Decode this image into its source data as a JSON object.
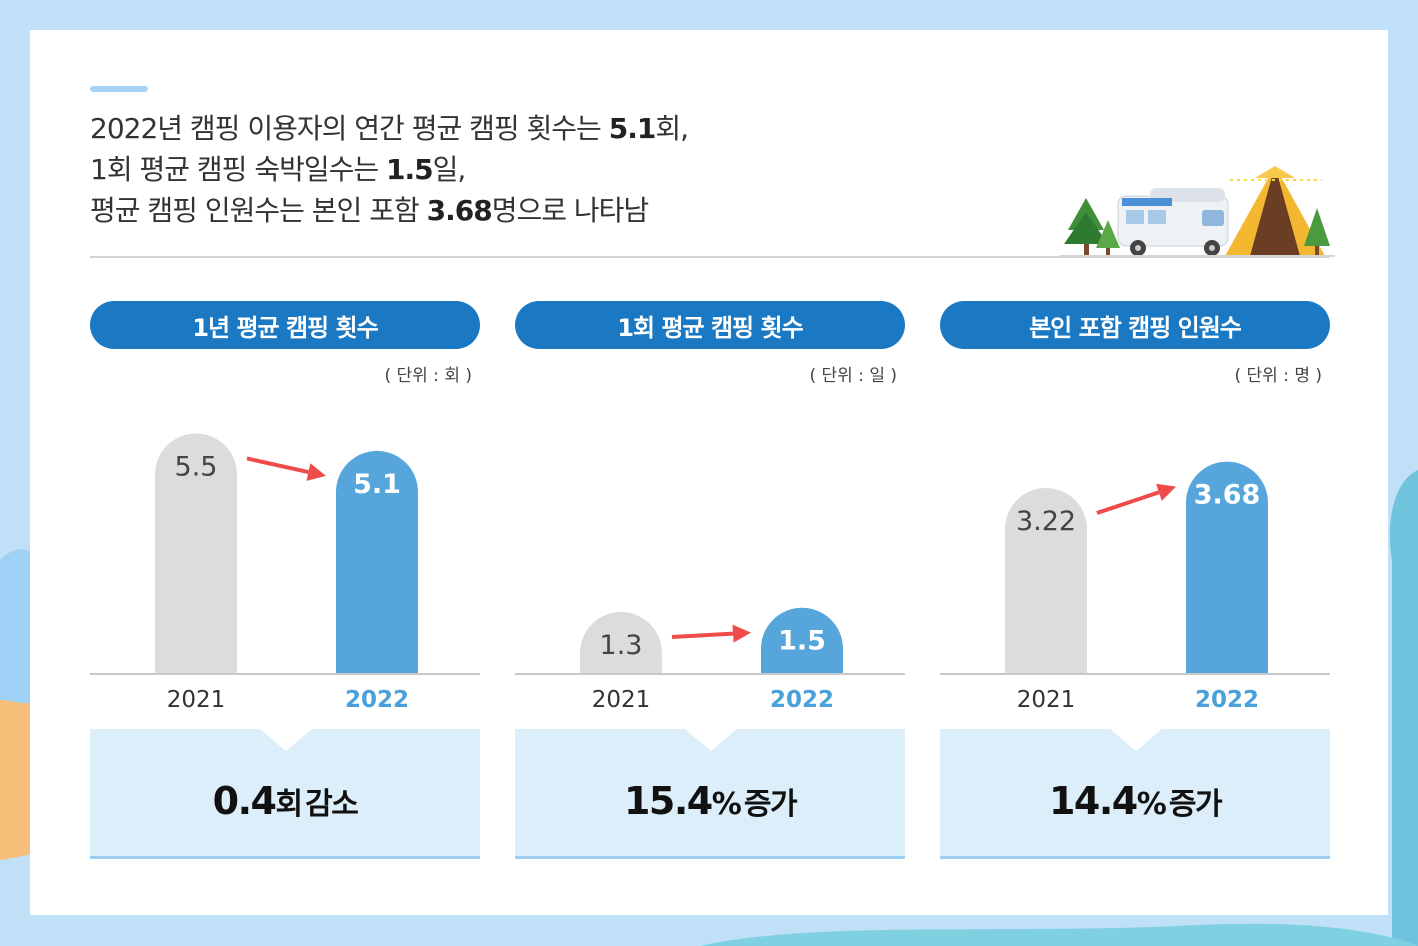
{
  "colors": {
    "accent": "#1b78c2",
    "bar_prev": "#dcdcdc",
    "bar_curr": "#56a6dc",
    "arrow": "#ef4b4b",
    "result_bg": "#ddeefb"
  },
  "headline": {
    "line1_a": "2022년 캠핑 이용자의 연간 평균 캠핑 횟수는 ",
    "line1_b": "5.1",
    "line1_c": "회,",
    "line2_a": "1회 평균 캠핑 숙박일수는 ",
    "line2_b": "1.5",
    "line2_c": "일,",
    "line3_a": "평균 캠핑 인원수는 본인 포함 ",
    "line3_b": "3.68",
    "line3_c": "명으로 나타남"
  },
  "illustration": "camping-trailer-tent-trees",
  "chart_data": [
    {
      "type": "bar",
      "title": "1년 평균 캠핑 횟수",
      "unit": "( 단위 : 회 )",
      "categories": [
        "2021",
        "2022"
      ],
      "values": [
        5.5,
        5.1
      ],
      "labels": [
        "5.5",
        "5.1"
      ],
      "change_value": "0.4",
      "change_suffix": "회",
      "change_word": "감소",
      "ylim": [
        0,
        6.2
      ]
    },
    {
      "type": "bar",
      "title": "1회 평균 캠핑 횟수",
      "unit": "( 단위 : 일 )",
      "categories": [
        "2021",
        "2022"
      ],
      "values": [
        1.3,
        1.5
      ],
      "labels": [
        "1.3",
        "1.5"
      ],
      "change_value": "15.4",
      "change_suffix": "%",
      "change_word": "증가",
      "ylim": [
        0,
        6.2
      ]
    },
    {
      "type": "bar",
      "title": "본인 포함 캠핑 인원수",
      "unit": "( 단위 : 명 )",
      "categories": [
        "2021",
        "2022"
      ],
      "values": [
        3.22,
        3.68
      ],
      "labels": [
        "3.22",
        "3.68"
      ],
      "change_value": "14.4",
      "change_suffix": "%",
      "change_word": "증가",
      "ylim": [
        0,
        4.7
      ]
    }
  ]
}
